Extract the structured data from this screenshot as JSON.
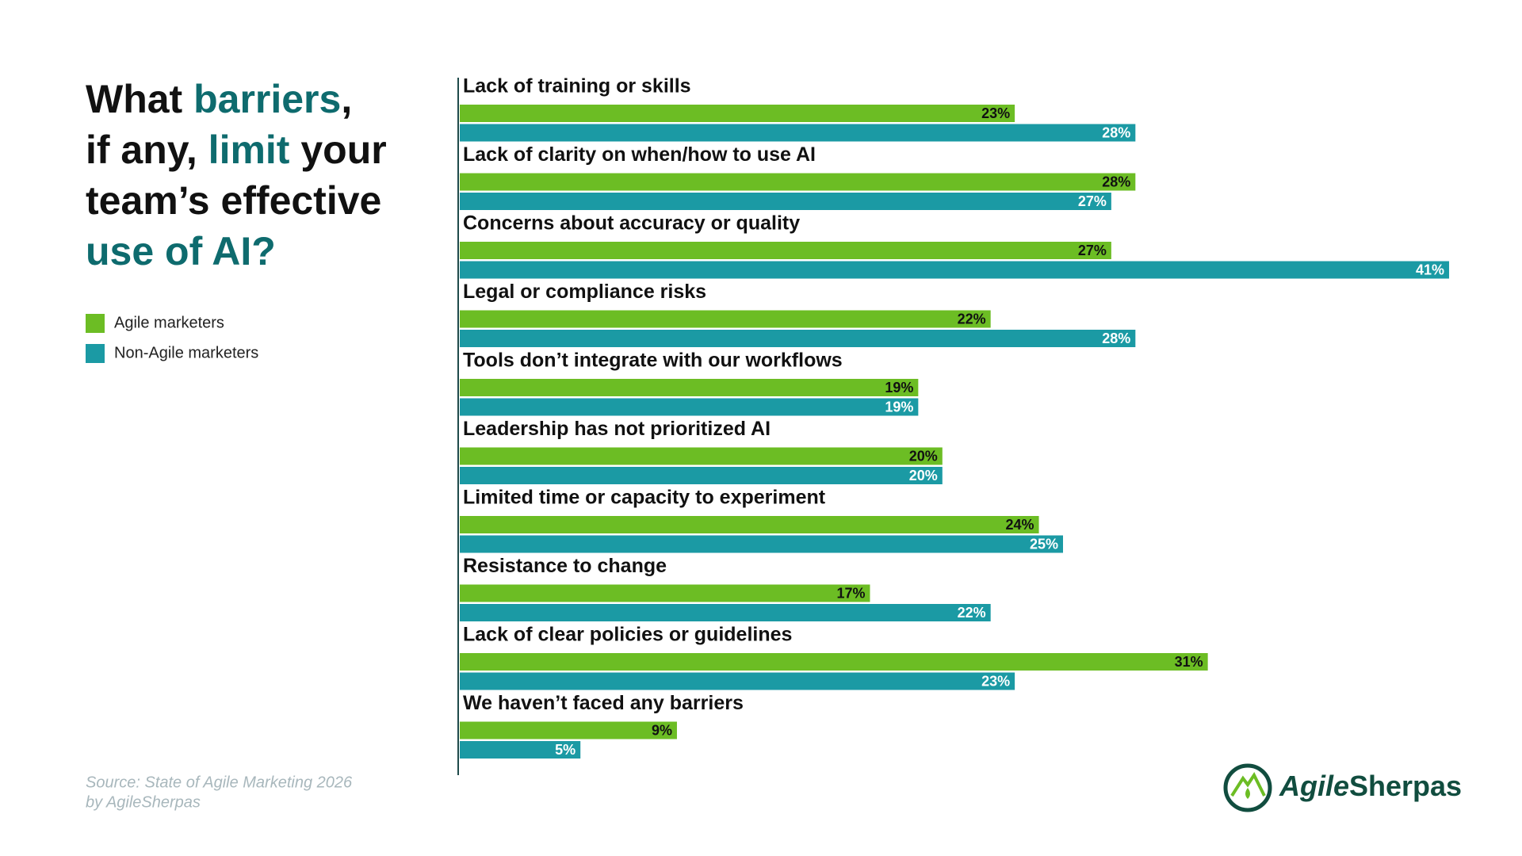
{
  "chart_data": {
    "type": "bar",
    "orientation": "horizontal",
    "title_lines": [
      [
        {
          "text": "What ",
          "accent": false
        },
        {
          "text": "barriers",
          "accent": true
        },
        {
          "text": ",",
          "accent": false
        }
      ],
      [
        {
          "text": "if any, ",
          "accent": false
        },
        {
          "text": "limit",
          "accent": true
        },
        {
          "text": " your",
          "accent": false
        }
      ],
      [
        {
          "text": "team’s effective",
          "accent": false
        }
      ],
      [
        {
          "text": "use of AI?",
          "accent": true
        }
      ]
    ],
    "categories": [
      "Lack of training or skills",
      "Lack of clarity on when/how to use AI",
      "Concerns about accuracy or quality",
      "Legal or compliance risks",
      "Tools don’t integrate with our workflows",
      "Leadership has not prioritized AI",
      "Limited time or capacity to experiment",
      "Resistance to change",
      "Lack of clear policies or guidelines",
      "We haven’t faced any barriers"
    ],
    "series": [
      {
        "name": "Agile marketers",
        "color": "#6cbd24",
        "label_color": "#111111",
        "values": [
          23,
          28,
          27,
          22,
          19,
          20,
          24,
          17,
          31,
          9
        ],
        "value_labels": [
          "23%",
          "28%",
          "27%",
          "22%",
          "19%",
          "20%",
          "24%",
          "17%",
          "31%",
          "9%"
        ]
      },
      {
        "name": "Non-Agile marketers",
        "color": "#1b9aa4",
        "label_color": "#ffffff",
        "values": [
          28,
          27,
          41,
          28,
          19,
          20,
          25,
          22,
          23,
          5
        ],
        "value_labels": [
          "28%",
          "27%",
          "41%",
          "28%",
          "19%",
          "20%",
          "25%",
          "22%",
          "23%",
          "5%"
        ]
      }
    ],
    "source_lines": [
      "Source: State of Agile Marketing 2026",
      "by AgileSherpas"
    ],
    "logo": {
      "prefix": "Agile",
      "suffix": "Sherpas"
    }
  }
}
